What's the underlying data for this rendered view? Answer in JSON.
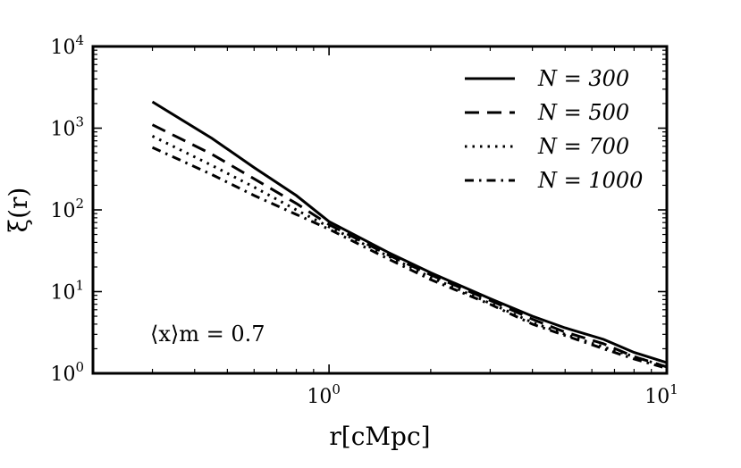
{
  "chart_data": {
    "type": "line",
    "xlabel": "r[cMpc]",
    "ylabel": "ξ(r)",
    "x_scale": "log",
    "y_scale": "log",
    "xlim": [
      0.2,
      10
    ],
    "ylim": [
      1,
      10000
    ],
    "x_ticks": [
      {
        "base": "10",
        "exp": "0",
        "value": 1
      },
      {
        "base": "10",
        "exp": "1",
        "value": 10
      }
    ],
    "y_ticks": [
      {
        "base": "10",
        "exp": "0",
        "value": 1
      },
      {
        "base": "10",
        "exp": "1",
        "value": 10
      },
      {
        "base": "10",
        "exp": "2",
        "value": 100
      },
      {
        "base": "10",
        "exp": "3",
        "value": 1000
      },
      {
        "base": "10",
        "exp": "4",
        "value": 10000
      }
    ],
    "grid": false,
    "legend_position": "top-right",
    "annotation": "⟨x⟩m = 0.7",
    "series": [
      {
        "name": "N = 300",
        "style": "solid",
        "x": [
          0.3,
          0.45,
          0.6,
          0.8,
          1.0,
          1.5,
          2.0,
          3.0,
          4.0,
          5.0,
          6.5,
          8.0,
          10.0
        ],
        "y": [
          2100,
          750,
          330,
          150,
          72,
          30,
          17,
          8.2,
          5.0,
          3.6,
          2.6,
          1.8,
          1.35
        ]
      },
      {
        "name": "N = 500",
        "style": "dashed",
        "x": [
          0.3,
          0.45,
          0.6,
          0.8,
          1.0,
          1.5,
          2.0,
          3.0,
          4.0,
          5.0,
          6.5,
          8.0,
          10.0
        ],
        "y": [
          1100,
          480,
          240,
          120,
          66,
          28,
          16,
          7.8,
          4.6,
          3.2,
          2.3,
          1.6,
          1.2
        ]
      },
      {
        "name": "N = 700",
        "style": "dotted",
        "x": [
          0.3,
          0.45,
          0.6,
          0.8,
          1.0,
          1.5,
          2.0,
          3.0,
          4.0,
          5.0,
          6.5,
          8.0,
          10.0
        ],
        "y": [
          800,
          350,
          190,
          100,
          62,
          27,
          15,
          7.2,
          4.2,
          3.0,
          2.1,
          1.6,
          1.2
        ]
      },
      {
        "name": "N = 1000",
        "style": "dashdot",
        "x": [
          0.3,
          0.45,
          0.6,
          0.8,
          1.0,
          1.5,
          2.0,
          3.0,
          4.0,
          5.0,
          6.5,
          8.0,
          10.0
        ],
        "y": [
          580,
          270,
          150,
          88,
          58,
          25,
          14,
          7.0,
          4.0,
          2.9,
          2.0,
          1.5,
          1.15
        ]
      }
    ]
  }
}
